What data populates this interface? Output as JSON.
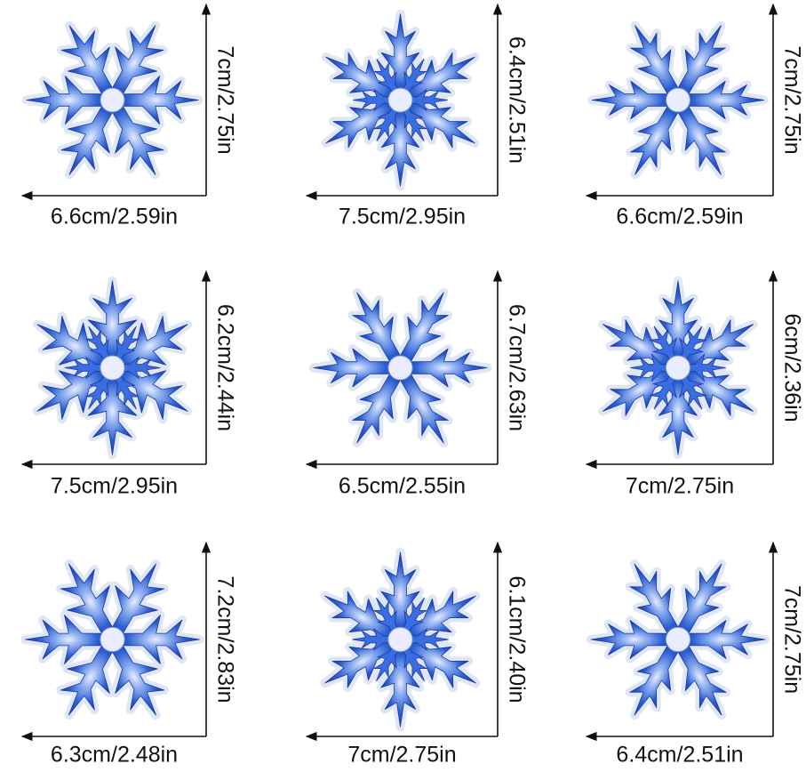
{
  "items": [
    {
      "width": "6.6cm/2.59in",
      "height": "7cm/2.75in"
    },
    {
      "width": "7.5cm/2.95in",
      "height": "6.4cm/2.51in"
    },
    {
      "width": "6.6cm/2.59in",
      "height": "7cm/2.75in"
    },
    {
      "width": "7.5cm/2.95in",
      "height": "6.2cm/2.44in"
    },
    {
      "width": "6.5cm/2.55in",
      "height": "6.7cm/2.63in"
    },
    {
      "width": "7cm/2.75in",
      "height": "6cm/2.36in"
    },
    {
      "width": "6.3cm/2.48in",
      "height": "7.2cm/2.83in"
    },
    {
      "width": "7cm/2.75in",
      "height": "6.1cm/2.40in"
    },
    {
      "width": "6.4cm/2.51in",
      "height": "7cm/2.75in"
    }
  ]
}
